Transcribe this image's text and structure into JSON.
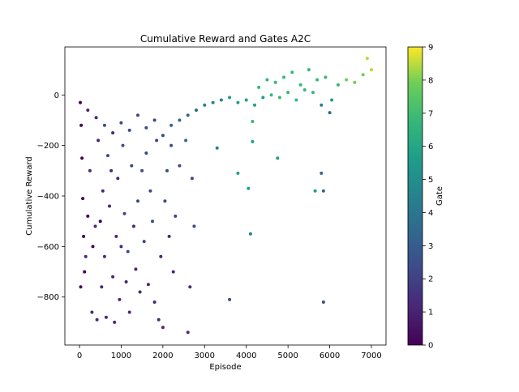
{
  "chart_data": {
    "type": "scatter",
    "title": "Cumulative Reward and Gates A2C",
    "xlabel": "Episode",
    "ylabel": "Cumulative Reward",
    "xlim": [
      -350,
      7350
    ],
    "ylim": [
      -990,
      190
    ],
    "x_ticks": [
      0,
      1000,
      2000,
      3000,
      4000,
      5000,
      6000,
      7000
    ],
    "y_ticks": [
      0,
      -200,
      -400,
      -600,
      -800
    ],
    "grid": false,
    "colorbar": {
      "label": "Gate",
      "range": [
        0,
        9
      ],
      "ticks": [
        0,
        1,
        2,
        3,
        4,
        5,
        6,
        7,
        8,
        9
      ],
      "colormap": "viridis"
    },
    "points": [
      [
        20,
        -30,
        0
      ],
      [
        40,
        -120,
        0
      ],
      [
        60,
        -250,
        0
      ],
      [
        80,
        -410,
        0
      ],
      [
        100,
        -560,
        0
      ],
      [
        120,
        -700,
        0
      ],
      [
        30,
        -760,
        0
      ],
      [
        150,
        -640,
        1
      ],
      [
        200,
        -480,
        0
      ],
      [
        250,
        -300,
        1
      ],
      [
        300,
        -860,
        1
      ],
      [
        320,
        -600,
        0
      ],
      [
        380,
        -520,
        1
      ],
      [
        420,
        -890,
        1
      ],
      [
        450,
        -180,
        1
      ],
      [
        500,
        -500,
        0
      ],
      [
        530,
        -760,
        1
      ],
      [
        560,
        -380,
        1
      ],
      [
        600,
        -640,
        1
      ],
      [
        640,
        -880,
        1
      ],
      [
        680,
        -240,
        2
      ],
      [
        720,
        -440,
        1
      ],
      [
        760,
        -300,
        1
      ],
      [
        800,
        -720,
        1
      ],
      [
        840,
        -900,
        1
      ],
      [
        880,
        -560,
        1
      ],
      [
        920,
        -330,
        1
      ],
      [
        960,
        -810,
        1
      ],
      [
        1000,
        -600,
        1
      ],
      [
        1040,
        -200,
        2
      ],
      [
        1080,
        -470,
        2
      ],
      [
        1120,
        -740,
        1
      ],
      [
        1160,
        -620,
        2
      ],
      [
        1200,
        -860,
        1
      ],
      [
        1250,
        -280,
        2
      ],
      [
        1300,
        -520,
        1
      ],
      [
        1350,
        -690,
        1
      ],
      [
        1400,
        -420,
        2
      ],
      [
        1450,
        -780,
        1
      ],
      [
        1500,
        -300,
        2
      ],
      [
        1550,
        -580,
        2
      ],
      [
        1600,
        -230,
        2
      ],
      [
        1650,
        -750,
        1
      ],
      [
        1700,
        -380,
        2
      ],
      [
        1750,
        -500,
        2
      ],
      [
        1800,
        -820,
        1
      ],
      [
        1850,
        -180,
        2
      ],
      [
        1900,
        -890,
        1
      ],
      [
        1950,
        -640,
        1
      ],
      [
        2000,
        -920,
        1
      ],
      [
        2050,
        -420,
        2
      ],
      [
        2100,
        -300,
        2
      ],
      [
        2150,
        -560,
        1
      ],
      [
        2200,
        -200,
        2
      ],
      [
        2250,
        -700,
        1
      ],
      [
        2300,
        -480,
        2
      ],
      [
        2400,
        -280,
        2
      ],
      [
        2550,
        -180,
        3
      ],
      [
        2600,
        -940,
        1
      ],
      [
        2650,
        -760,
        1
      ],
      [
        2700,
        -330,
        2
      ],
      [
        2750,
        -520,
        2
      ],
      [
        3300,
        -210,
        4
      ],
      [
        3600,
        -810,
        2
      ],
      [
        3800,
        -310,
        5
      ],
      [
        4050,
        -370,
        5
      ],
      [
        4100,
        -550,
        4
      ],
      [
        4150,
        -185,
        5
      ],
      [
        4150,
        -105,
        6
      ],
      [
        4750,
        -250,
        5
      ],
      [
        5650,
        -380,
        5
      ],
      [
        5800,
        -310,
        3
      ],
      [
        5850,
        -380,
        3
      ],
      [
        5850,
        -820,
        2
      ],
      [
        200,
        -60,
        1
      ],
      [
        400,
        -90,
        1
      ],
      [
        600,
        -120,
        2
      ],
      [
        800,
        -150,
        1
      ],
      [
        1000,
        -110,
        2
      ],
      [
        1200,
        -140,
        2
      ],
      [
        1400,
        -80,
        2
      ],
      [
        1600,
        -130,
        2
      ],
      [
        1800,
        -100,
        2
      ],
      [
        2000,
        -160,
        2
      ],
      [
        2200,
        -120,
        3
      ],
      [
        2400,
        -100,
        3
      ],
      [
        2600,
        -80,
        3
      ],
      [
        2800,
        -60,
        3
      ],
      [
        3000,
        -40,
        4
      ],
      [
        3200,
        -30,
        4
      ],
      [
        3400,
        -20,
        4
      ],
      [
        3600,
        -10,
        5
      ],
      [
        3800,
        -30,
        5
      ],
      [
        4000,
        -20,
        5
      ],
      [
        4200,
        -40,
        5
      ],
      [
        4400,
        -10,
        5
      ],
      [
        4600,
        0,
        6
      ],
      [
        4800,
        -10,
        6
      ],
      [
        5000,
        10,
        6
      ],
      [
        5200,
        -20,
        6
      ],
      [
        5400,
        20,
        6
      ],
      [
        5600,
        10,
        6
      ],
      [
        5800,
        -40,
        4
      ],
      [
        6000,
        -70,
        3
      ],
      [
        6200,
        40,
        6
      ],
      [
        6400,
        60,
        7
      ],
      [
        6600,
        50,
        7
      ],
      [
        6800,
        80,
        7
      ],
      [
        7000,
        100,
        8
      ],
      [
        6900,
        145,
        8
      ],
      [
        6050,
        -20,
        5
      ],
      [
        5900,
        70,
        6
      ],
      [
        5700,
        60,
        6
      ],
      [
        5500,
        100,
        6
      ],
      [
        5300,
        40,
        6
      ],
      [
        5100,
        90,
        6
      ],
      [
        4900,
        70,
        6
      ],
      [
        4700,
        50,
        6
      ],
      [
        4500,
        60,
        6
      ],
      [
        4300,
        30,
        6
      ]
    ]
  }
}
